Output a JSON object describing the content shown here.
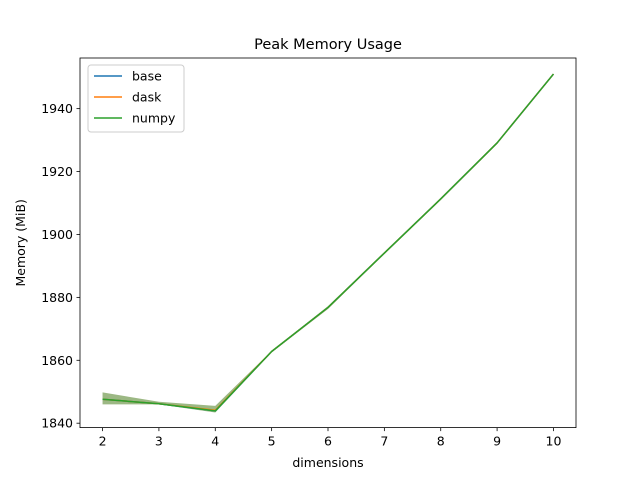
{
  "chart_data": {
    "type": "line",
    "title": "Peak Memory Usage",
    "xlabel": "dimensions",
    "ylabel": "Memory (MiB)",
    "x": [
      2,
      3,
      4,
      5,
      6,
      7,
      8,
      9,
      10
    ],
    "x_ticks": [
      "2",
      "3",
      "4",
      "5",
      "6",
      "7",
      "8",
      "9",
      "10"
    ],
    "y_ticks": [
      "1840",
      "1860",
      "1880",
      "1900",
      "1920",
      "1940"
    ],
    "y_tick_values": [
      1840,
      1860,
      1880,
      1900,
      1920,
      1940
    ],
    "xlim": [
      1.6,
      10.4
    ],
    "ylim": [
      1838.6,
      1956.1
    ],
    "grid": false,
    "legend_position": "top-left",
    "band": {
      "upper": [
        1849.8,
        1846.8,
        1845.5,
        1863,
        1877.2,
        1894.3,
        1911.5,
        1929.3,
        1951.1
      ],
      "lower": [
        1846.0,
        1846.0,
        1843.4,
        1862.5,
        1876.3,
        1893.9,
        1911.1,
        1928.9,
        1950.8
      ],
      "color": "#7ba05b"
    },
    "series": [
      {
        "name": "base",
        "color": "#1f77b4",
        "values": [
          1847.6,
          1846.2,
          1843.9,
          1862.8,
          1876.8,
          1894.1,
          1911.3,
          1929.1,
          1951.0
        ]
      },
      {
        "name": "dask",
        "color": "#ff7f0e",
        "values": [
          1847.6,
          1846.2,
          1844.1,
          1862.8,
          1876.8,
          1894.1,
          1911.3,
          1929.1,
          1951.0
        ]
      },
      {
        "name": "numpy",
        "color": "#2ca02c",
        "values": [
          1847.6,
          1846.2,
          1843.9,
          1862.8,
          1876.8,
          1894.1,
          1911.3,
          1929.1,
          1951.0
        ]
      }
    ]
  }
}
